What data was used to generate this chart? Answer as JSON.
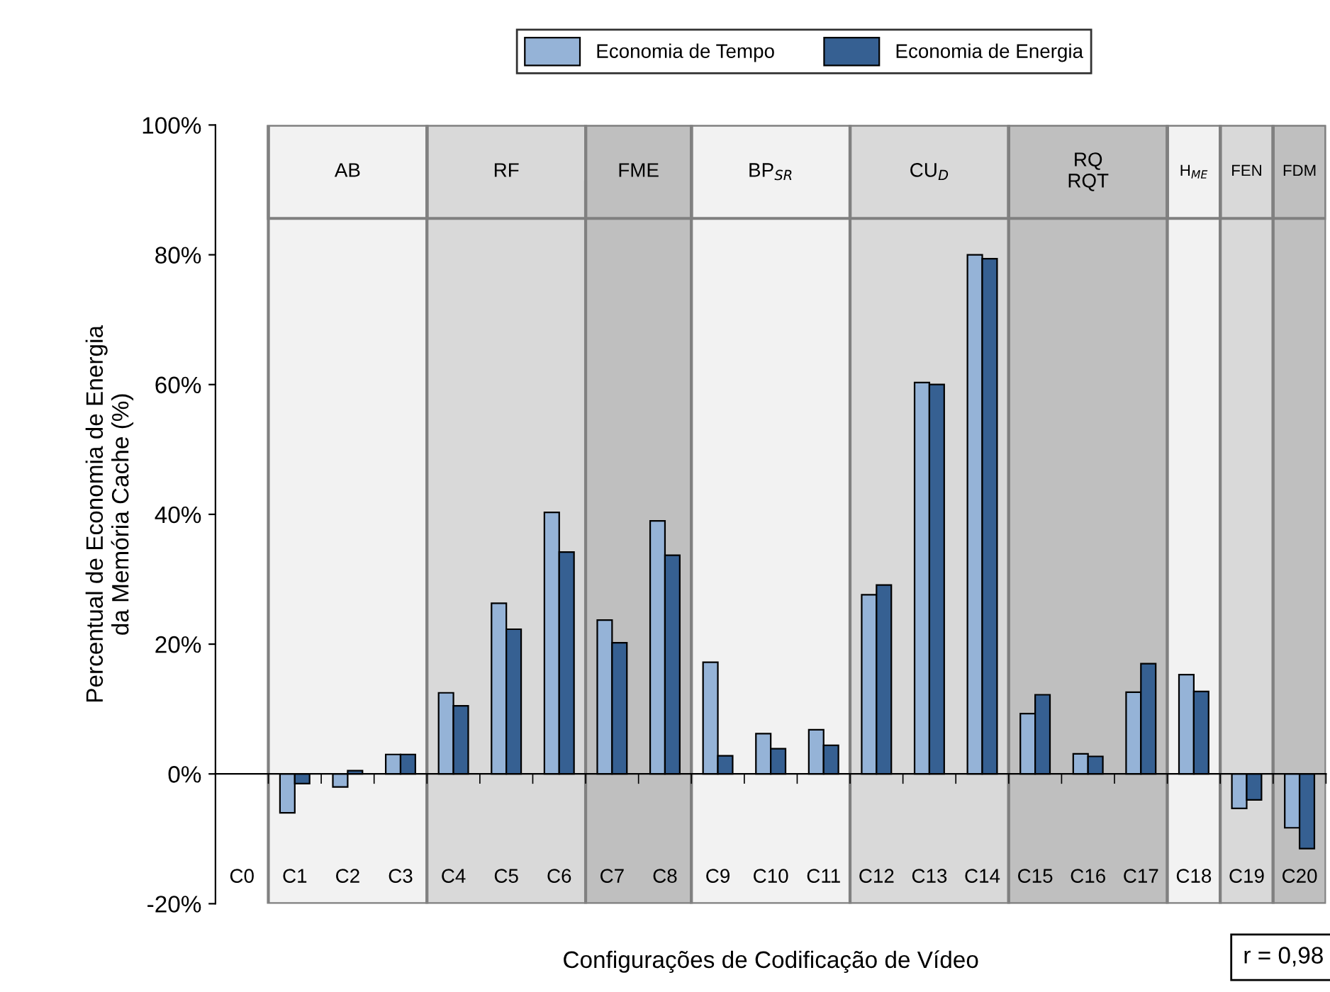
{
  "chart_data": {
    "type": "bar",
    "xlabel": "Configurações de Codificação de Vídeo",
    "ylabel": "Percentual de Economia de Energia\nda Memória Cache (%)",
    "categories": [
      "C0",
      "C1",
      "C2",
      "C3",
      "C4",
      "C5",
      "C6",
      "C7",
      "C8",
      "C9",
      "C10",
      "C11",
      "C12",
      "C13",
      "C14",
      "C15",
      "C16",
      "C17",
      "C18",
      "C19",
      "C20"
    ],
    "series": [
      {
        "name": "Economia de Tempo",
        "color": "#95b3d7",
        "values": [
          null,
          -6,
          -2,
          3,
          12.5,
          26.3,
          40.3,
          23.7,
          39,
          17.2,
          6.2,
          6.8,
          27.6,
          60.3,
          80,
          9.3,
          3.1,
          12.6,
          15.3,
          -5.3,
          -8.3
        ]
      },
      {
        "name": "Economia de Energia",
        "color": "#366092",
        "values": [
          null,
          -1.5,
          0.5,
          3,
          10.5,
          22.3,
          34.2,
          20.2,
          33.7,
          2.8,
          3.9,
          4.4,
          29.1,
          60,
          79.4,
          12.2,
          2.7,
          17,
          12.7,
          -4,
          -11.5
        ]
      }
    ],
    "ylim": [
      -20,
      100
    ],
    "yticks": [
      {
        "value": -20,
        "label": "-20%"
      },
      {
        "value": 0,
        "label": "0%"
      },
      {
        "value": 20,
        "label": "20%"
      },
      {
        "value": 40,
        "label": "40%"
      },
      {
        "value": 60,
        "label": "60%"
      },
      {
        "value": 80,
        "label": "80%"
      },
      {
        "value": 100,
        "label": "100%"
      }
    ],
    "bands": [
      {
        "axis": "x",
        "from": "C1",
        "to": "C3",
        "label": "AB",
        "color": "#f2f2f2"
      },
      {
        "axis": "x",
        "from": "C4",
        "to": "C6",
        "label": "RF",
        "color": "#d9d9d9"
      },
      {
        "axis": "x",
        "from": "C7",
        "to": "C8",
        "label": "FME",
        "color": "#bfbfbf"
      },
      {
        "axis": "x",
        "from": "C9",
        "to": "C11",
        "label": "BP$_{SR}$",
        "color": "#f2f2f2"
      },
      {
        "axis": "x",
        "from": "C12",
        "to": "C14",
        "label": "CU$_{D}$",
        "color": "#d9d9d9"
      },
      {
        "axis": "x",
        "from": "C15",
        "to": "C17",
        "label": "RQ\nRQT",
        "color": "#bfbfbf"
      },
      {
        "axis": "x",
        "from": "C18",
        "to": "C18",
        "label": "H$_{ME}$",
        "color": "#f2f2f2"
      },
      {
        "axis": "x",
        "from": "C19",
        "to": "C19",
        "label": "FEN",
        "color": "#d9d9d9"
      },
      {
        "axis": "x",
        "from": "C20",
        "to": "C20",
        "label": "FDM",
        "color": "#bfbfbf"
      }
    ],
    "annotations": [
      "r = 0,98"
    ],
    "legend": "top"
  }
}
